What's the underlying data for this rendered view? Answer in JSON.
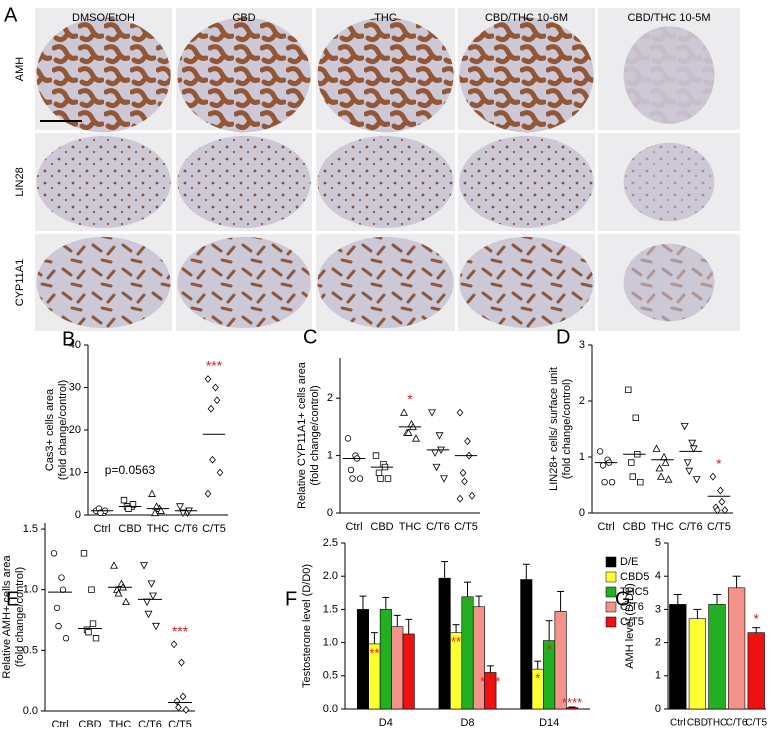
{
  "panel_a": {
    "label": "A",
    "columns": [
      "DMSO/EtOH",
      "CBD",
      "THC",
      "CBD/THC 10-6M",
      "CBD/THC 10-5M"
    ],
    "rows": [
      "AMH",
      "LIN28",
      "CYP11A1"
    ]
  },
  "chart_data": [
    {
      "type": "dot",
      "label": "B",
      "ylabel": [
        "Cas3+ cells area",
        "(fold change/control)"
      ],
      "categories": [
        "Ctrl",
        "CBD",
        "THC",
        "C/T6",
        "C/T5"
      ],
      "markers": [
        "circle",
        "square",
        "triangle",
        "down-triangle",
        "diamond"
      ],
      "points": [
        [
          1,
          0.5,
          1,
          1.5,
          0.5
        ],
        [
          3.5,
          2,
          2.5,
          2,
          1.5
        ],
        [
          5,
          1.5,
          1,
          0.5,
          2
        ],
        [
          2,
          0.5,
          1,
          0.5
        ],
        [
          32,
          30,
          27,
          25,
          13,
          10,
          5
        ]
      ],
      "means": [
        1,
        2,
        1.5,
        1,
        19
      ],
      "note": "p=0.0563",
      "significance": [
        null,
        null,
        null,
        null,
        "***"
      ],
      "ylim": [
        0,
        40
      ],
      "yticks": [
        0,
        10,
        20,
        30,
        40
      ]
    },
    {
      "type": "dot",
      "label": "C",
      "ylabel": [
        "Relative CYP11A1+ cells area",
        "(fold change/control)"
      ],
      "categories": [
        "Ctrl",
        "CBD",
        "THC",
        "C/T6",
        "C/T5"
      ],
      "markers": [
        "circle",
        "square",
        "triangle",
        "down-triangle",
        "diamond"
      ],
      "points": [
        [
          1.3,
          1.0,
          0.95,
          0.75,
          0.6,
          0.6
        ],
        [
          1.0,
          0.85,
          0.8,
          0.7,
          0.6,
          0.6
        ],
        [
          1.75,
          1.55,
          1.5,
          1.4,
          1.4,
          1.3
        ],
        [
          1.75,
          1.35,
          1.1,
          1.05,
          0.8,
          0.6
        ],
        [
          1.75,
          1.25,
          1.0,
          0.7,
          0.55,
          0.3,
          0.25
        ]
      ],
      "means": [
        0.95,
        0.8,
        1.5,
        1.1,
        1.0
      ],
      "significance": [
        null,
        null,
        "*",
        null,
        null
      ],
      "ylim": [
        0,
        2.7
      ],
      "yticks": [
        0,
        1,
        2
      ]
    },
    {
      "type": "dot",
      "label": "D",
      "ylabel": [
        "LIN28+ cells/ surface unit",
        "(fold change/control)"
      ],
      "categories": [
        "Ctrl",
        "CBD",
        "THC",
        "C/T6",
        "C/T5"
      ],
      "markers": [
        "circle",
        "square",
        "triangle",
        "down-triangle",
        "diamond"
      ],
      "points": [
        [
          1.1,
          0.95,
          0.9,
          0.85,
          0.55,
          0.55
        ],
        [
          2.2,
          1.7,
          1.05,
          0.9,
          0.65,
          0.55
        ],
        [
          1.15,
          1.0,
          0.9,
          0.8,
          0.65,
          0.6
        ],
        [
          1.55,
          1.25,
          1.15,
          0.9,
          0.75,
          0.6
        ],
        [
          0.65,
          0.4,
          0.2,
          0.1,
          0.05,
          0.05
        ]
      ],
      "means": [
        0.9,
        1.05,
        0.95,
        1.1,
        0.3
      ],
      "significance": [
        null,
        null,
        null,
        null,
        "*"
      ],
      "ylim": [
        0,
        3
      ],
      "yticks": [
        0,
        1,
        2,
        3
      ]
    },
    {
      "type": "dot",
      "label": "E",
      "ylabel": [
        "Relative AMH+ cells area",
        "(fold change/control)"
      ],
      "categories": [
        "Ctrl",
        "CBD",
        "THC",
        "C/T6",
        "C/T5"
      ],
      "markers": [
        "circle",
        "square",
        "triangle",
        "down-triangle",
        "diamond"
      ],
      "points": [
        [
          1.3,
          1.1,
          1.0,
          0.85,
          0.7,
          0.6
        ],
        [
          1.3,
          1.0,
          0.72,
          0.67,
          0.65,
          0.6
        ],
        [
          1.2,
          1.05,
          1.02,
          1.0,
          0.97,
          0.9
        ],
        [
          1.2,
          1.05,
          0.95,
          0.9,
          0.8,
          0.7
        ],
        [
          0.55,
          0.4,
          0.12,
          0.08,
          0.03,
          0.01
        ]
      ],
      "means": [
        0.98,
        0.68,
        1.02,
        0.92,
        0.07
      ],
      "significance": [
        null,
        null,
        null,
        null,
        "***"
      ],
      "ylim": [
        0,
        1.55
      ],
      "yticks": [
        {
          "value": 0,
          "label": "0.0"
        },
        0.5,
        {
          "value": 1,
          "label": "1.0"
        },
        1.5
      ]
    },
    {
      "type": "grouped-bar",
      "label": "F",
      "ylabel": [
        "Testosterone level (D/D0)"
      ],
      "categories": [
        "D4",
        "D8",
        "D14"
      ],
      "series": [
        {
          "name": "D/E",
          "color": "#000000",
          "values": [
            1.5,
            1.97,
            1.95
          ],
          "errors": [
            0.2,
            0.25,
            0.23
          ],
          "significance": [
            null,
            null,
            null
          ]
        },
        {
          "name": "CBD5",
          "color": "#ffff33",
          "values": [
            0.98,
            1.15,
            0.6
          ],
          "errors": [
            0.17,
            0.12,
            0.12
          ],
          "significance": [
            "**",
            "**",
            "*"
          ]
        },
        {
          "name": "THC5",
          "color": "#22b022",
          "values": [
            1.5,
            1.69,
            1.03
          ],
          "errors": [
            0.18,
            0.22,
            0.3
          ],
          "significance": [
            null,
            null,
            "*"
          ]
        },
        {
          "name": "C/T6",
          "color": "#f4938a",
          "values": [
            1.24,
            1.54,
            1.47
          ],
          "errors": [
            0.17,
            0.16,
            0.3
          ],
          "significance": [
            null,
            null,
            null
          ]
        },
        {
          "name": "C/T5",
          "color": "#ee1111",
          "values": [
            1.13,
            0.55,
            0.02
          ],
          "errors": [
            0.22,
            0.1,
            0.01
          ],
          "significance": [
            null,
            "****",
            "****"
          ]
        }
      ],
      "ylim": [
        0,
        2.5
      ],
      "yticks": [
        {
          "value": 0,
          "label": "0.0"
        },
        0.5,
        {
          "value": 1,
          "label": "1.0"
        },
        1.5,
        {
          "value": 2,
          "label": "2.0"
        },
        2.5
      ]
    },
    {
      "type": "bar",
      "label": "G",
      "ylabel": [
        "AMH level (D/D0)"
      ],
      "categories": [
        "Ctrl",
        "CBD",
        "THC",
        "C/T6",
        "C/T5"
      ],
      "values": [
        3.15,
        2.72,
        3.15,
        3.65,
        2.3
      ],
      "errors": [
        0.3,
        0.28,
        0.3,
        0.35,
        0.15
      ],
      "colors": [
        "#000000",
        "#ffff33",
        "#22b022",
        "#f4938a",
        "#ee1111"
      ],
      "significance": [
        null,
        null,
        null,
        null,
        "*"
      ],
      "ylim": [
        0,
        5
      ],
      "yticks": [
        0,
        1,
        2,
        3,
        4,
        5
      ]
    }
  ]
}
